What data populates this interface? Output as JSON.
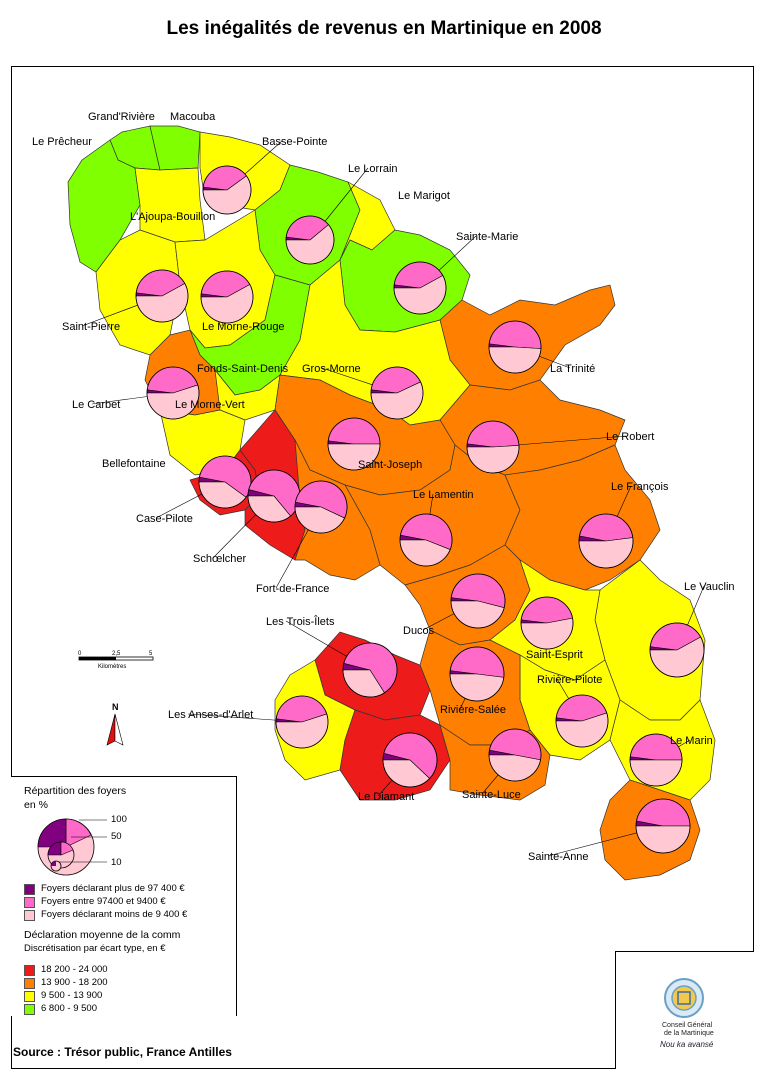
{
  "title": "Les inégalités de revenus en Martinique en 2008",
  "colors": {
    "class_1": "#ee1b1b",
    "class_2": "#ff8000",
    "class_3": "#ffff00",
    "class_4": "#80ff00",
    "pie_high": "#800080",
    "pie_mid": "#ff69c8",
    "pie_low": "#ffc8d2"
  },
  "communes": [
    {
      "name": "Grand'Rivière",
      "class": 4
    },
    {
      "name": "Macouba",
      "class": 4
    },
    {
      "name": "Le Prêcheur",
      "class": 4
    },
    {
      "name": "Basse-Pointe",
      "class": 3
    },
    {
      "name": "L'Ajoupa-Bouillon",
      "class": 3
    },
    {
      "name": "Le Lorrain",
      "class": 4
    },
    {
      "name": "Le Marigot",
      "class": 3
    },
    {
      "name": "Sainte-Marie",
      "class": 4
    },
    {
      "name": "Saint-Pierre",
      "class": 3
    },
    {
      "name": "Le Morne-Rouge",
      "class": 3
    },
    {
      "name": "La Trinité",
      "class": 2
    },
    {
      "name": "Fonds-Saint-Denis",
      "class": 4
    },
    {
      "name": "Gros-Morne",
      "class": 3
    },
    {
      "name": "Le Carbet",
      "class": 2
    },
    {
      "name": "Le Morne-Vert",
      "class": 3
    },
    {
      "name": "Le Robert",
      "class": 2
    },
    {
      "name": "Bellefontaine",
      "class": 3
    },
    {
      "name": "Saint-Joseph",
      "class": 2
    },
    {
      "name": "Le Lamentin",
      "class": 2
    },
    {
      "name": "Le François",
      "class": 2
    },
    {
      "name": "Case-Pilote",
      "class": 1
    },
    {
      "name": "Schœlcher",
      "class": 1
    },
    {
      "name": "Fort-de-France",
      "class": 2
    },
    {
      "name": "Le Vauclin",
      "class": 3
    },
    {
      "name": "Les Trois-Îlets",
      "class": 1
    },
    {
      "name": "Ducos",
      "class": 2
    },
    {
      "name": "Saint-Esprit",
      "class": 3
    },
    {
      "name": "Rivière-Pilote",
      "class": 3
    },
    {
      "name": "Les Anses-d'Arlet",
      "class": 3
    },
    {
      "name": "Rivière-Salée",
      "class": 2
    },
    {
      "name": "Le Marin",
      "class": 3
    },
    {
      "name": "Le Diamant",
      "class": 1
    },
    {
      "name": "Sainte-Luce",
      "class": 2
    },
    {
      "name": "Sainte-Anne",
      "class": 2
    }
  ],
  "scale_bar": {
    "ticks": [
      "0",
      "2,5",
      "5"
    ],
    "unit": "Kilomètres"
  },
  "north_label": "N",
  "legend": {
    "pie_title": "Répartition des foyers",
    "pie_unit": "en %",
    "size_values": [
      "100",
      "50",
      "10"
    ],
    "categories": [
      {
        "label": "Foyers déclarant plus de 97 400 €",
        "color": "#800080"
      },
      {
        "label": "Foyers entre 97400 et 9400 €",
        "color": "#ff69c8"
      },
      {
        "label": "Foyers déclarant moins de 9 400 €",
        "color": "#ffc8d2"
      }
    ],
    "choropleth_title": "Déclaration moyenne de la comm",
    "choropleth_subtitle": "Discrétisation par écart type, en €",
    "classes": [
      {
        "label": "18 200 - 24 000",
        "color": "#ee1b1b"
      },
      {
        "label": "13 900 - 18 200",
        "color": "#ff8000"
      },
      {
        "label": "9 500 - 13 900",
        "color": "#ffff00"
      },
      {
        "label": "6 800 - 9 500",
        "color": "#80ff00"
      }
    ]
  },
  "source": "Source : Trésor public, France Antilles",
  "logo": {
    "line1": "Conseil Général",
    "line2": "de la Martinique",
    "tagline": "Nou ka avansé"
  }
}
